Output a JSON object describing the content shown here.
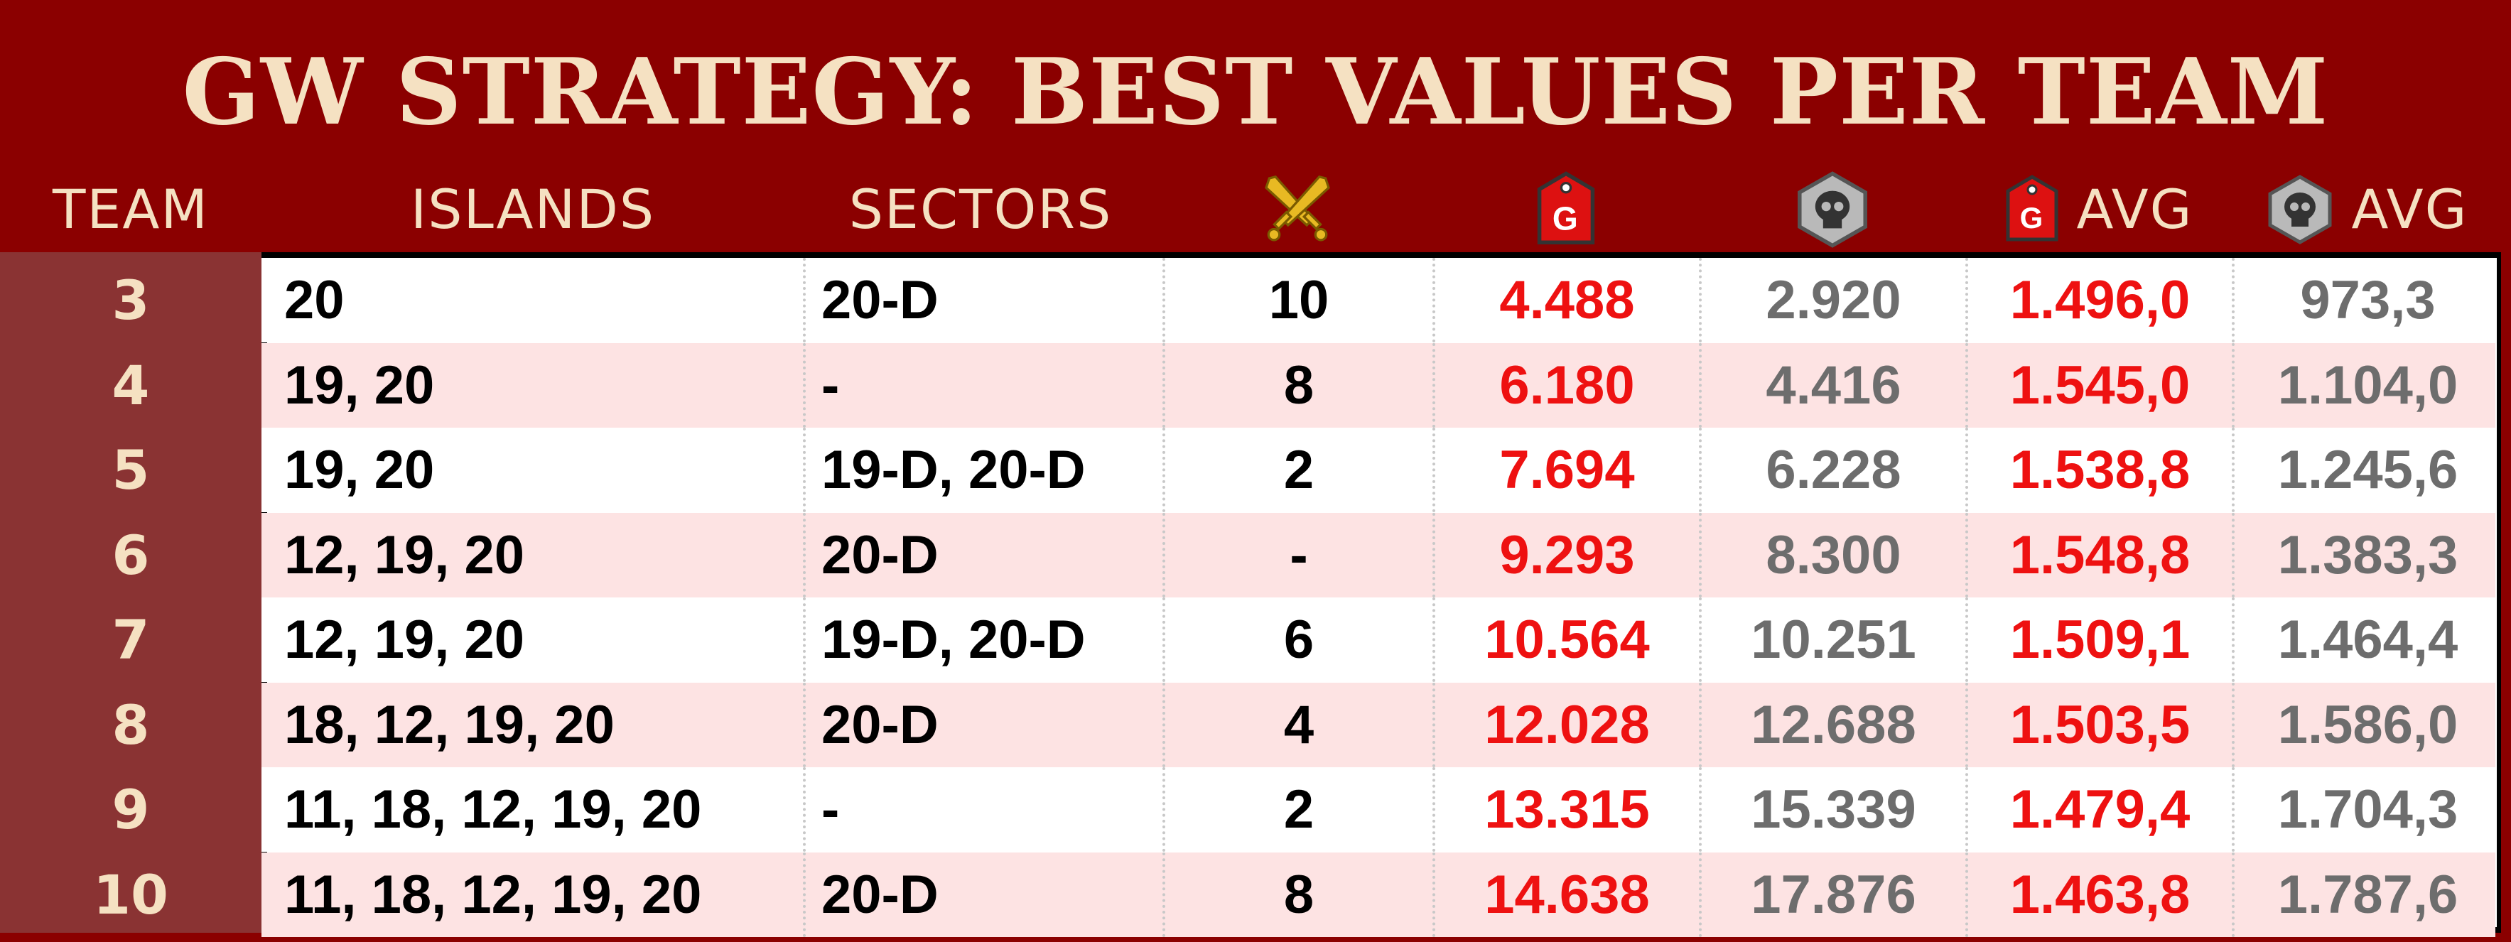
{
  "title": "GW STRATEGY: BEST VALUES PER TEAM",
  "headers": {
    "team": "TEAM",
    "islands": "ISLANDS",
    "sectors": "SECTORS",
    "battles_icon": "crossed-swords-icon",
    "gold_icon": "gold-tag-icon",
    "skull_icon": "skull-badge-icon",
    "gold_avg": "AVG",
    "skull_avg": "AVG"
  },
  "colors": {
    "banner": "#8b0000",
    "team_column": "#8a3333",
    "header_text": "#f5e1c2",
    "alt_row": "#fde3e3",
    "gold_value": "#ee1111",
    "skull_value": "#6d6d6d"
  },
  "rows": [
    {
      "team": "3",
      "islands": "20",
      "sectors": "20-D",
      "battles": "10",
      "gold": "4.488",
      "skull": "2.920",
      "gold_avg": "1.496,0",
      "skull_avg": "973,3"
    },
    {
      "team": "4",
      "islands": "19, 20",
      "sectors": "-",
      "battles": "8",
      "gold": "6.180",
      "skull": "4.416",
      "gold_avg": "1.545,0",
      "skull_avg": "1.104,0"
    },
    {
      "team": "5",
      "islands": "19, 20",
      "sectors": "19-D, 20-D",
      "battles": "2",
      "gold": "7.694",
      "skull": "6.228",
      "gold_avg": "1.538,8",
      "skull_avg": "1.245,6"
    },
    {
      "team": "6",
      "islands": "12, 19, 20",
      "sectors": "20-D",
      "battles": "-",
      "gold": "9.293",
      "skull": "8.300",
      "gold_avg": "1.548,8",
      "skull_avg": "1.383,3"
    },
    {
      "team": "7",
      "islands": "12, 19, 20",
      "sectors": "19-D, 20-D",
      "battles": "6",
      "gold": "10.564",
      "skull": "10.251",
      "gold_avg": "1.509,1",
      "skull_avg": "1.464,4"
    },
    {
      "team": "8",
      "islands": "18, 12, 19, 20",
      "sectors": "20-D",
      "battles": "4",
      "gold": "12.028",
      "skull": "12.688",
      "gold_avg": "1.503,5",
      "skull_avg": "1.586,0"
    },
    {
      "team": "9",
      "islands": "11, 18, 12, 19, 20",
      "sectors": "-",
      "battles": "2",
      "gold": "13.315",
      "skull": "15.339",
      "gold_avg": "1.479,4",
      "skull_avg": "1.704,3"
    },
    {
      "team": "10",
      "islands": "11, 18, 12, 19, 20",
      "sectors": "20-D",
      "battles": "8",
      "gold": "14.638",
      "skull": "17.876",
      "gold_avg": "1.463,8",
      "skull_avg": "1.787,6"
    }
  ]
}
